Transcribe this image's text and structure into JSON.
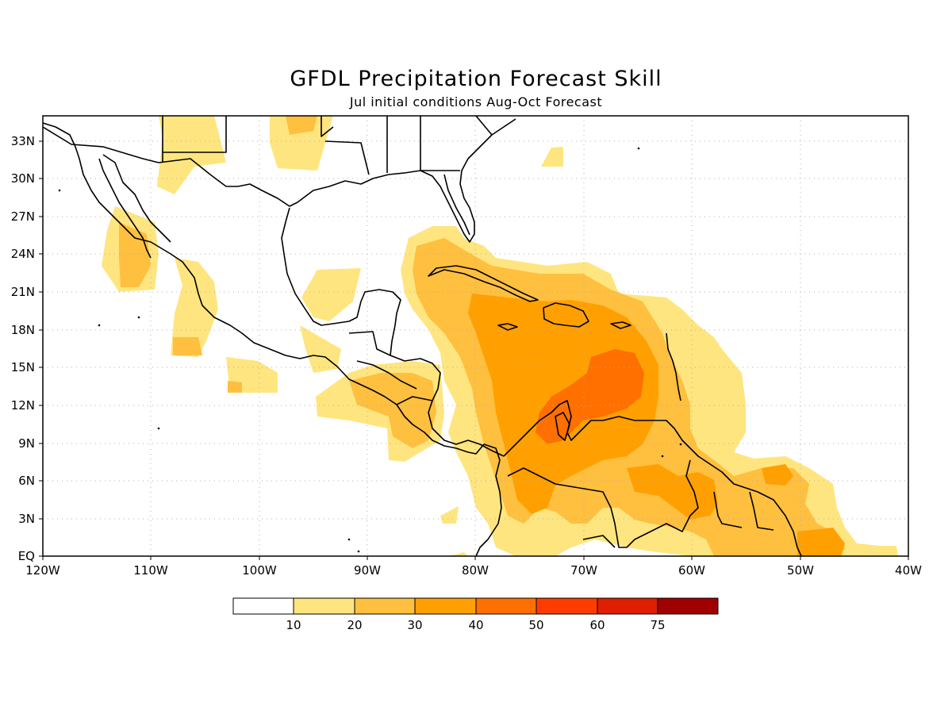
{
  "title": "GFDL Precipitation Forecast Skill",
  "subtitle": "Jul initial conditions  Aug-Oct Forecast",
  "map": {
    "lon_range": [
      -120,
      -40
    ],
    "lat_range": [
      0,
      35
    ],
    "grid": true,
    "lon_ticks": [
      "120W",
      "110W",
      "100W",
      "90W",
      "80W",
      "70W",
      "60W",
      "50W",
      "40W"
    ],
    "lat_ticks": [
      "EQ",
      "3N",
      "6N",
      "9N",
      "12N",
      "15N",
      "18N",
      "21N",
      "24N",
      "27N",
      "30N",
      "33N"
    ]
  },
  "colorbar": {
    "labels": [
      "10",
      "20",
      "30",
      "40",
      "50",
      "60",
      "75"
    ],
    "colors": [
      "#ffffff",
      "#ffe57f",
      "#ffbf3f",
      "#ffa000",
      "#ff7000",
      "#ff3c00",
      "#e01e00",
      "#a00000"
    ]
  },
  "skill_colors": {
    "level_10_20": "#ffe57f",
    "level_20_30": "#ffbf3f",
    "level_30_40": "#ffa000",
    "level_40_50": "#ff7000"
  }
}
